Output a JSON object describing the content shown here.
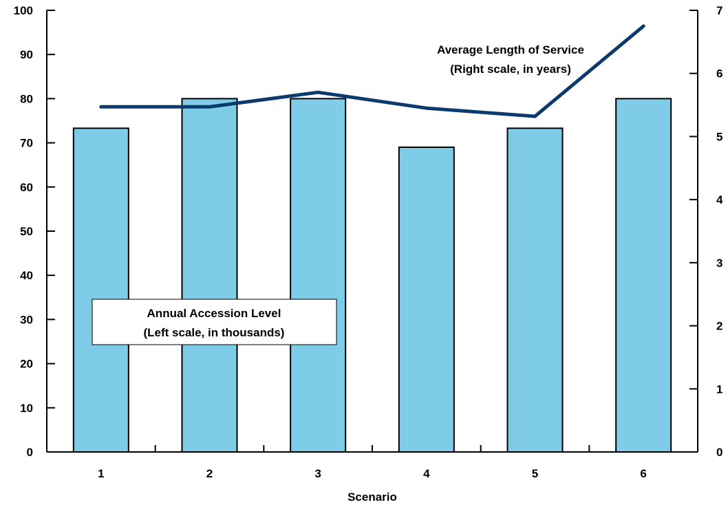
{
  "chart_data": {
    "type": "bar",
    "categories": [
      "1",
      "2",
      "3",
      "4",
      "5",
      "6"
    ],
    "series": [
      {
        "values": [
          73.3,
          80,
          80,
          69,
          73.3,
          80
        ],
        "axis": "left"
      },
      {
        "values": [
          5.47,
          5.47,
          5.7,
          5.45,
          5.32,
          6.75
        ],
        "axis": "right",
        "render": "line"
      }
    ],
    "xlabel": "Scenario",
    "ylim_left": [
      0,
      100
    ],
    "ylim_right": [
      0,
      7
    ],
    "yticks_left": [
      "0",
      "10",
      "20",
      "30",
      "40",
      "50",
      "60",
      "70",
      "80",
      "90",
      "100"
    ],
    "yticks_right": [
      "0",
      "1",
      "2",
      "3",
      "4",
      "5",
      "6",
      "7"
    ],
    "annotations": {
      "bars_line1": "Annual Accession Level",
      "bars_line2": "(Left scale, in thousands)",
      "line_line1": "Average Length of Service",
      "line_line2": "(Right scale, in years)"
    },
    "grid": false,
    "colors": {
      "bars": "#7ecce8",
      "bar_edge": "#000000",
      "line": "#0b3a6e"
    }
  }
}
